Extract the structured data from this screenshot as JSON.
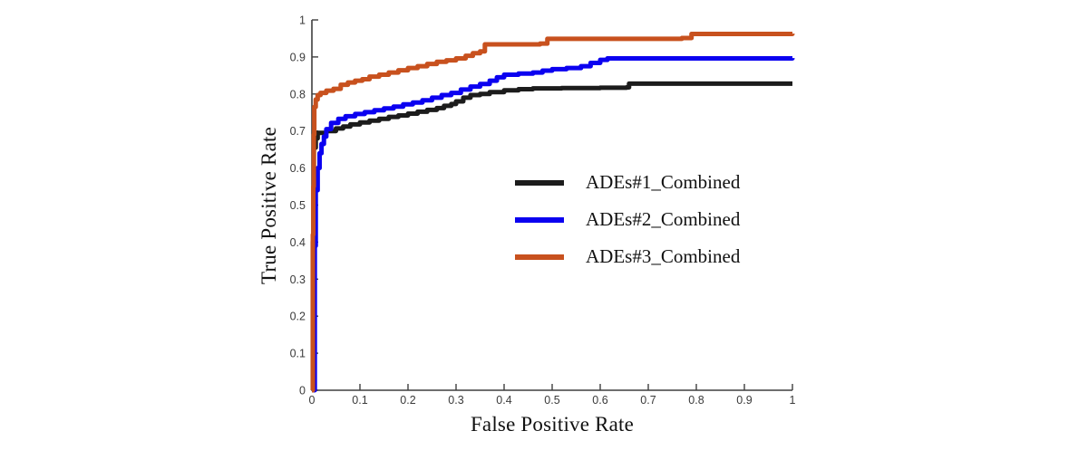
{
  "chart_data": {
    "type": "line",
    "subtype": "roc-step-curves",
    "title": "",
    "xlabel": "False Positive Rate",
    "ylabel": "True Positive Rate",
    "xlim": [
      0,
      1
    ],
    "ylim": [
      0,
      1
    ],
    "grid": false,
    "legend_position": "inside-middle-right",
    "axis_color": "#3f3f3f",
    "tick_label_color": "#3a3a3a",
    "xticks": [
      0,
      0.1,
      0.2,
      0.3,
      0.4,
      0.5,
      0.6,
      0.7,
      0.8,
      0.9,
      1
    ],
    "yticks": [
      0,
      0.1,
      0.2,
      0.3,
      0.4,
      0.5,
      0.6,
      0.7,
      0.8,
      0.9,
      1
    ],
    "xtick_labels": [
      "0",
      "0.1",
      "0.2",
      "0.3",
      "0.4",
      "0.5",
      "0.6",
      "0.7",
      "0.8",
      "0.9",
      "1"
    ],
    "ytick_labels": [
      "0",
      "0.1",
      "0.2",
      "0.3",
      "0.4",
      "0.5",
      "0.6",
      "0.7",
      "0.8",
      "0.9",
      "1"
    ],
    "series": [
      {
        "name": "ADEs#1_Combined",
        "color": "#1c1c1c",
        "points": [
          [
            0,
            0
          ],
          [
            0.002,
            0.4
          ],
          [
            0.004,
            0.655
          ],
          [
            0.008,
            0.68
          ],
          [
            0.012,
            0.695
          ],
          [
            0.03,
            0.7
          ],
          [
            0.05,
            0.707
          ],
          [
            0.065,
            0.712
          ],
          [
            0.08,
            0.718
          ],
          [
            0.1,
            0.723
          ],
          [
            0.12,
            0.728
          ],
          [
            0.14,
            0.733
          ],
          [
            0.16,
            0.738
          ],
          [
            0.18,
            0.742
          ],
          [
            0.2,
            0.747
          ],
          [
            0.22,
            0.752
          ],
          [
            0.24,
            0.757
          ],
          [
            0.26,
            0.762
          ],
          [
            0.275,
            0.768
          ],
          [
            0.29,
            0.773
          ],
          [
            0.3,
            0.78
          ],
          [
            0.315,
            0.79
          ],
          [
            0.33,
            0.797
          ],
          [
            0.35,
            0.8
          ],
          [
            0.37,
            0.805
          ],
          [
            0.4,
            0.81
          ],
          [
            0.43,
            0.813
          ],
          [
            0.46,
            0.815
          ],
          [
            0.52,
            0.816
          ],
          [
            0.6,
            0.817
          ],
          [
            0.655,
            0.818
          ],
          [
            0.66,
            0.828
          ],
          [
            1.0,
            0.828
          ]
        ]
      },
      {
        "name": "ADEs#2_Combined",
        "color": "#0b00f0",
        "points": [
          [
            0,
            0
          ],
          [
            0.006,
            0.39
          ],
          [
            0.008,
            0.54
          ],
          [
            0.012,
            0.6
          ],
          [
            0.016,
            0.64
          ],
          [
            0.02,
            0.665
          ],
          [
            0.025,
            0.685
          ],
          [
            0.03,
            0.705
          ],
          [
            0.04,
            0.722
          ],
          [
            0.055,
            0.733
          ],
          [
            0.07,
            0.74
          ],
          [
            0.09,
            0.746
          ],
          [
            0.11,
            0.751
          ],
          [
            0.13,
            0.756
          ],
          [
            0.15,
            0.761
          ],
          [
            0.17,
            0.766
          ],
          [
            0.19,
            0.772
          ],
          [
            0.21,
            0.777
          ],
          [
            0.23,
            0.783
          ],
          [
            0.25,
            0.79
          ],
          [
            0.27,
            0.797
          ],
          [
            0.29,
            0.803
          ],
          [
            0.31,
            0.812
          ],
          [
            0.33,
            0.82
          ],
          [
            0.35,
            0.827
          ],
          [
            0.37,
            0.836
          ],
          [
            0.385,
            0.845
          ],
          [
            0.4,
            0.852
          ],
          [
            0.43,
            0.855
          ],
          [
            0.46,
            0.858
          ],
          [
            0.48,
            0.863
          ],
          [
            0.5,
            0.867
          ],
          [
            0.53,
            0.87
          ],
          [
            0.56,
            0.875
          ],
          [
            0.58,
            0.884
          ],
          [
            0.6,
            0.892
          ],
          [
            0.615,
            0.896
          ],
          [
            1.0,
            0.897
          ]
        ]
      },
      {
        "name": "ADEs#3_Combined",
        "color": "#c8511e",
        "points": [
          [
            0,
            0
          ],
          [
            0.002,
            0.42
          ],
          [
            0.003,
            0.55
          ],
          [
            0.004,
            0.69
          ],
          [
            0.005,
            0.765
          ],
          [
            0.008,
            0.785
          ],
          [
            0.012,
            0.797
          ],
          [
            0.018,
            0.803
          ],
          [
            0.03,
            0.809
          ],
          [
            0.045,
            0.814
          ],
          [
            0.06,
            0.825
          ],
          [
            0.075,
            0.831
          ],
          [
            0.09,
            0.836
          ],
          [
            0.105,
            0.84
          ],
          [
            0.12,
            0.847
          ],
          [
            0.14,
            0.852
          ],
          [
            0.16,
            0.858
          ],
          [
            0.18,
            0.864
          ],
          [
            0.2,
            0.87
          ],
          [
            0.22,
            0.875
          ],
          [
            0.24,
            0.881
          ],
          [
            0.26,
            0.887
          ],
          [
            0.28,
            0.891
          ],
          [
            0.3,
            0.896
          ],
          [
            0.32,
            0.903
          ],
          [
            0.335,
            0.91
          ],
          [
            0.35,
            0.915
          ],
          [
            0.36,
            0.934
          ],
          [
            0.475,
            0.936
          ],
          [
            0.49,
            0.949
          ],
          [
            0.77,
            0.951
          ],
          [
            0.79,
            0.962
          ],
          [
            1.0,
            0.963
          ]
        ]
      }
    ]
  }
}
